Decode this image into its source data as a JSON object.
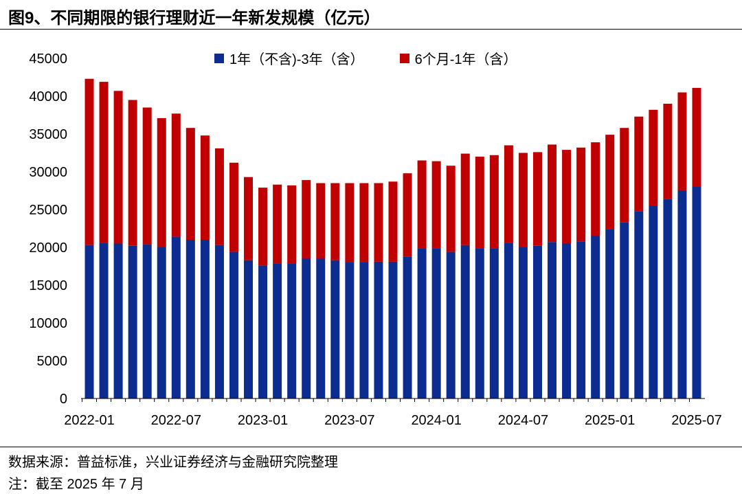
{
  "title": "图9、不同期限的银行理财近一年新发规模（亿元）",
  "footer": {
    "source": "数据来源：普益标准，兴业证券经济与金融研究院整理",
    "note": "注：截至 2025 年 7 月"
  },
  "chart_data": {
    "type": "bar",
    "stacked": true,
    "title": "不同期限的银行理财近一年新发规模（亿元）",
    "xlabel": "",
    "ylabel": "",
    "ylim": [
      0,
      45000
    ],
    "yticks": [
      0,
      5000,
      10000,
      15000,
      20000,
      25000,
      30000,
      35000,
      40000,
      45000
    ],
    "xtick_labels": [
      "2022-01",
      "2022-07",
      "2023-01",
      "2023-07",
      "2024-01",
      "2024-07",
      "2025-01",
      "2025-07"
    ],
    "legend_position": "top",
    "categories": [
      "2022-01",
      "2022-02",
      "2022-03",
      "2022-04",
      "2022-05",
      "2022-06",
      "2022-07",
      "2022-08",
      "2022-09",
      "2022-10",
      "2022-11",
      "2022-12",
      "2023-01",
      "2023-02",
      "2023-03",
      "2023-04",
      "2023-05",
      "2023-06",
      "2023-07",
      "2023-08",
      "2023-09",
      "2023-10",
      "2023-11",
      "2023-12",
      "2024-01",
      "2024-02",
      "2024-03",
      "2024-04",
      "2024-05",
      "2024-06",
      "2024-07",
      "2024-08",
      "2024-09",
      "2024-10",
      "2024-11",
      "2024-12",
      "2025-01",
      "2025-02",
      "2025-03",
      "2025-04",
      "2025-05",
      "2025-06",
      "2025-07"
    ],
    "series": [
      {
        "name": "1年（不含)-3年（含）",
        "color": "#0d2c8f",
        "values": [
          20300,
          20600,
          20500,
          20200,
          20400,
          20000,
          21400,
          21000,
          21000,
          20300,
          19400,
          18300,
          17600,
          17900,
          17900,
          18500,
          18500,
          18300,
          18000,
          18000,
          18100,
          18100,
          18800,
          19900,
          19900,
          19400,
          20300,
          19900,
          19900,
          20600,
          20000,
          20200,
          20700,
          20500,
          20800,
          21500,
          22400,
          23300,
          24800,
          25500,
          26400,
          27500,
          28000
        ]
      },
      {
        "name": "6个月-1年（含）",
        "color": "#c00000",
        "values": [
          22000,
          21300,
          20200,
          19300,
          18100,
          17100,
          16300,
          14800,
          13800,
          12800,
          11800,
          11000,
          10300,
          10400,
          10300,
          10400,
          10000,
          10200,
          10500,
          10500,
          10400,
          10600,
          11000,
          11600,
          11500,
          11400,
          12100,
          12100,
          12300,
          12900,
          12500,
          12400,
          12900,
          12400,
          12400,
          12400,
          12500,
          12500,
          12500,
          12700,
          12600,
          13000,
          13100
        ]
      }
    ]
  }
}
